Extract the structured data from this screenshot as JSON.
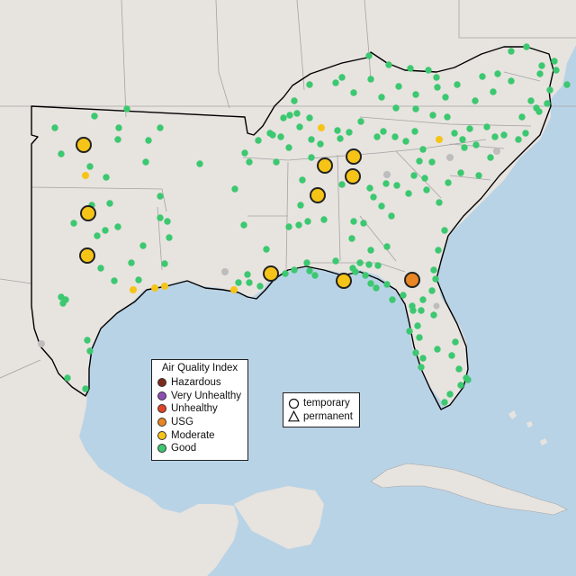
{
  "legend": {
    "title": "Air Quality Index",
    "categories": [
      {
        "label": "Hazardous",
        "color": "#7e2a1a"
      },
      {
        "label": "Very Unhealthy",
        "color": "#8e4fb5"
      },
      {
        "label": "Unhealthy",
        "color": "#e04427"
      },
      {
        "label": "USG",
        "color": "#e88623"
      },
      {
        "label": "Moderate",
        "color": "#f6c417"
      },
      {
        "label": "Good",
        "color": "#3cc870"
      }
    ]
  },
  "shape_legend": {
    "items": [
      {
        "label": "temporary",
        "icon": "circle-outline-icon"
      },
      {
        "label": "permanent",
        "icon": "triangle-outline-icon"
      }
    ]
  },
  "colors": {
    "water": "#b9d3e6",
    "land": "#e7e3df",
    "land_outside": "#ebe6e2",
    "state_border": "#a4a4a4",
    "region_outline": "#000000",
    "no_data": "#bdbdbd"
  },
  "monitors_large": [
    {
      "category": "Moderate"
    },
    {
      "category": "Moderate"
    },
    {
      "category": "Moderate"
    },
    {
      "category": "Moderate"
    },
    {
      "category": "Moderate"
    },
    {
      "category": "Moderate"
    },
    {
      "category": "Moderate"
    },
    {
      "category": "Moderate"
    },
    {
      "category": "Moderate"
    },
    {
      "category": "USG"
    }
  ]
}
